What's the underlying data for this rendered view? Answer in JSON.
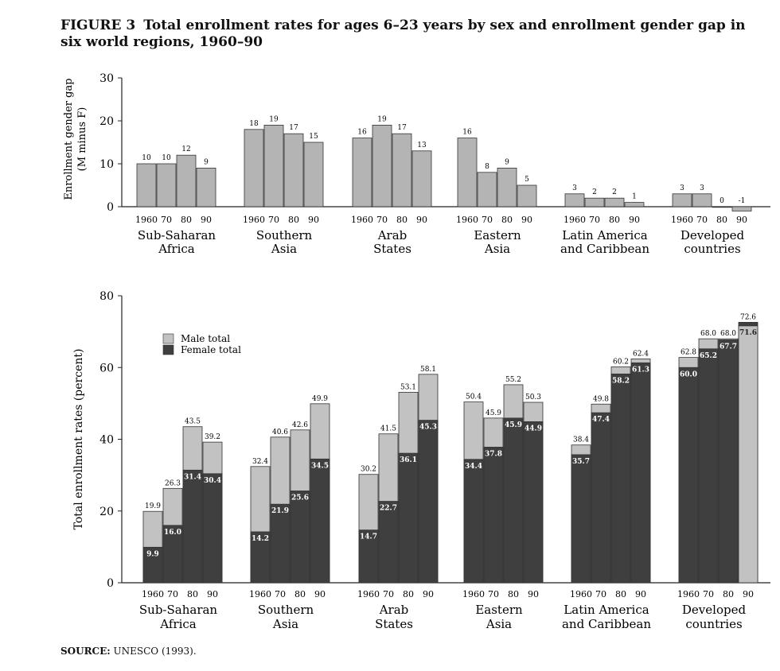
{
  "title": {
    "label": "FIGURE 3",
    "text": "Total enrollment rates for ages 6–23 years by sex and enrollment gender gap in six world regions, 1960–90"
  },
  "source": {
    "label": "SOURCE:",
    "text": "UNESCO (1993)."
  },
  "colors": {
    "male": "#c2c2c2",
    "female": "#3f3f3f",
    "gap": "#b4b4b4",
    "axis": "#222222"
  },
  "chart_data": [
    {
      "type": "bar",
      "ylabel": "Enrollment gender gap",
      "ylabel2": "(M minus F)",
      "ylim": [
        0,
        30
      ],
      "yticks": [
        0,
        10,
        20,
        30
      ],
      "grid": false,
      "year_labels": [
        "1960",
        "70",
        "80",
        "90"
      ],
      "groups": [
        {
          "region": [
            "Sub-Saharan",
            "Africa"
          ],
          "values": [
            10,
            10,
            12,
            9
          ]
        },
        {
          "region": [
            "Southern",
            "Asia"
          ],
          "values": [
            18,
            19,
            17,
            15
          ]
        },
        {
          "region": [
            "Arab",
            "States"
          ],
          "values": [
            16,
            19,
            17,
            13
          ]
        },
        {
          "region": [
            "Eastern",
            "Asia"
          ],
          "values": [
            16,
            8,
            9,
            5
          ]
        },
        {
          "region": [
            "Latin America",
            "and Caribbean"
          ],
          "values": [
            3,
            2,
            2,
            1
          ]
        },
        {
          "region": [
            "Developed",
            "countries"
          ],
          "values": [
            3,
            3,
            0,
            -1
          ]
        }
      ]
    },
    {
      "type": "bar",
      "stacked": "overlay",
      "ylabel": "Total enrollment rates (percent)",
      "ylim": [
        0,
        80
      ],
      "yticks": [
        0,
        20,
        40,
        60,
        80
      ],
      "grid": false,
      "legend": {
        "position": "upper-left",
        "entries": [
          "Male total",
          "Female total"
        ]
      },
      "year_labels": [
        "1960",
        "70",
        "80",
        "90"
      ],
      "groups": [
        {
          "region": [
            "Sub-Saharan",
            "Africa"
          ],
          "male": [
            19.9,
            26.3,
            43.5,
            39.2
          ],
          "female": [
            9.9,
            16.0,
            31.4,
            30.4
          ]
        },
        {
          "region": [
            "Southern",
            "Asia"
          ],
          "male": [
            32.4,
            40.6,
            42.6,
            49.9
          ],
          "female": [
            14.2,
            21.9,
            25.6,
            34.5
          ]
        },
        {
          "region": [
            "Arab",
            "States"
          ],
          "male": [
            30.2,
            41.5,
            53.1,
            58.1
          ],
          "female": [
            14.7,
            22.7,
            36.1,
            45.3
          ]
        },
        {
          "region": [
            "Eastern",
            "Asia"
          ],
          "male": [
            50.4,
            45.9,
            55.2,
            50.3
          ],
          "female": [
            34.4,
            37.8,
            45.9,
            44.9
          ]
        },
        {
          "region": [
            "Latin America",
            "and Caribbean"
          ],
          "male": [
            38.4,
            49.8,
            60.2,
            62.4
          ],
          "female": [
            35.7,
            47.4,
            58.2,
            61.3
          ]
        },
        {
          "region": [
            "Developed",
            "countries"
          ],
          "male": [
            62.8,
            68.0,
            68.0,
            71.6
          ],
          "female": [
            60.0,
            65.2,
            67.7,
            72.6
          ]
        }
      ]
    }
  ]
}
